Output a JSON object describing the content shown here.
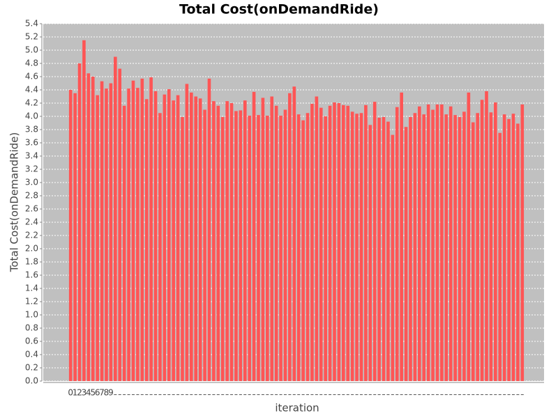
{
  "chart_data": {
    "type": "bar",
    "title": "Total Cost(onDemandRide)",
    "x_label": "iteration",
    "y_label": "Total Cost(onDemandRide)",
    "categories": [
      "0",
      "1",
      "2",
      "3",
      "4",
      "5",
      "6",
      "7",
      "8",
      "9",
      null,
      null,
      null,
      null,
      null,
      null,
      null,
      null,
      null,
      null,
      null,
      null,
      null,
      null,
      null,
      null,
      null,
      null,
      null,
      null,
      null,
      null,
      null,
      null,
      null,
      null,
      null,
      null,
      null,
      null,
      null,
      null,
      null,
      null,
      null,
      null,
      null,
      null,
      null,
      null,
      null,
      null,
      null,
      null,
      null,
      null,
      null,
      null,
      null,
      null,
      null,
      null,
      null,
      null,
      null,
      null,
      null,
      null,
      null,
      null,
      null,
      null,
      null,
      null,
      null,
      null,
      null,
      null,
      null,
      null,
      null,
      null,
      null,
      null,
      null,
      null,
      null,
      null,
      null,
      null,
      null,
      null,
      null,
      null,
      null,
      null,
      null,
      null,
      null,
      null,
      null,
      null
    ],
    "values": [
      4.4,
      4.35,
      4.8,
      5.15,
      4.65,
      4.6,
      4.32,
      4.53,
      4.42,
      4.5,
      4.9,
      4.72,
      4.16,
      4.42,
      4.54,
      4.43,
      4.57,
      4.26,
      4.59,
      4.38,
      4.05,
      4.33,
      4.41,
      4.24,
      4.32,
      3.99,
      4.49,
      4.36,
      4.3,
      4.27,
      4.1,
      4.57,
      4.23,
      4.16,
      3.99,
      4.23,
      4.2,
      4.08,
      4.09,
      4.24,
      4.01,
      4.37,
      4.02,
      4.28,
      4.01,
      4.3,
      4.16,
      4.01,
      4.1,
      4.35,
      4.45,
      4.03,
      3.94,
      4.05,
      4.19,
      4.3,
      4.13,
      4.0,
      4.16,
      4.21,
      4.2,
      4.17,
      4.16,
      4.07,
      4.04,
      4.05,
      4.17,
      3.87,
      4.22,
      3.98,
      3.99,
      3.92,
      3.72,
      4.14,
      4.36,
      3.84,
      3.99,
      4.05,
      4.15,
      4.03,
      4.18,
      4.1,
      4.18,
      4.18,
      4.03,
      4.15,
      4.02,
      3.99,
      4.07,
      4.36,
      3.91,
      4.05,
      4.25,
      4.38,
      4.06,
      4.21,
      3.75,
      4.03,
      3.96,
      4.04,
      3.89,
      4.18
    ],
    "color": "#ff5555",
    "ylim": [
      0,
      5.4
    ],
    "yticks": [
      {
        "value": 0,
        "label": "0.0"
      },
      0.2,
      0.4,
      0.6,
      0.8,
      {
        "value": 1,
        "label": "1.0"
      },
      1.2,
      1.4,
      1.6,
      1.8,
      {
        "value": 2,
        "label": "2.0"
      },
      2.2,
      2.4,
      2.6,
      2.8,
      {
        "value": 3,
        "label": "3.0"
      },
      3.2,
      3.4,
      3.6,
      3.8,
      {
        "value": 4,
        "label": "4.0"
      },
      4.2,
      4.4,
      4.6,
      4.8,
      {
        "value": 5,
        "label": "5.0"
      },
      5.2,
      5.4
    ],
    "grid": true
  }
}
